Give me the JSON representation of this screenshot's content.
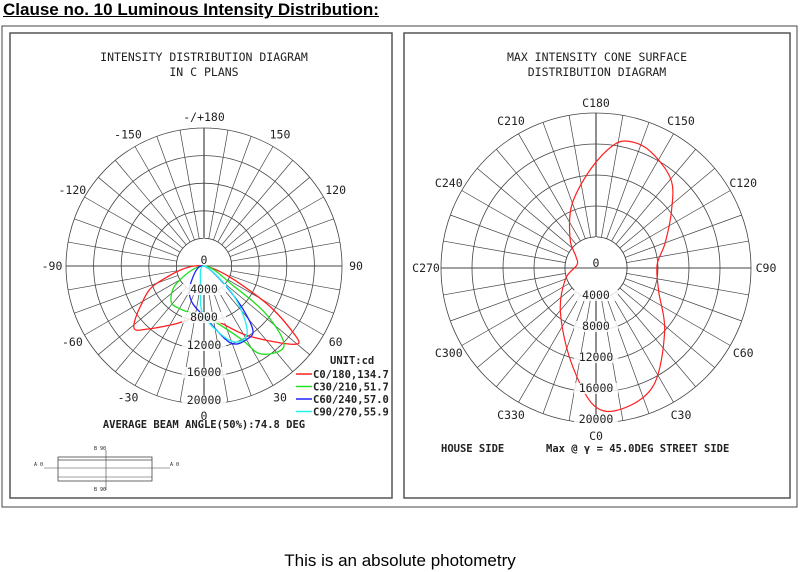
{
  "heading": "Clause no. 10 Luminous Intensity Distribution:",
  "caption": "This is an absolute photometry",
  "chart_data": [
    {
      "type": "polar-line",
      "title": [
        "INTENSITY DISTRIBUTION DIAGRAM",
        "IN C PLANS"
      ],
      "angle_labels": [
        "-/+180",
        "150",
        "120",
        "90",
        "60",
        "30",
        "0",
        "-30",
        "-60",
        "-90",
        "-120",
        "-150"
      ],
      "radial_labels": [
        "0",
        "4000",
        "8000",
        "12000",
        "16000",
        "20000"
      ],
      "radial_range": [
        0,
        20000
      ],
      "unit_label": "UNIT:cd",
      "footer": "AVERAGE BEAM ANGLE(50%):74.8 DEG",
      "series": [
        {
          "name": "C0/180,134.7",
          "color": "#ff2020",
          "points": [
            [
              0,
              0
            ],
            [
              -70,
              7200
            ],
            [
              -58,
              10800
            ],
            [
              -48.5,
              13550
            ],
            [
              -42,
              12300
            ],
            [
              -27,
              9450
            ],
            [
              -8,
              7600
            ],
            [
              13,
              8200
            ],
            [
              32,
              11900
            ],
            [
              49,
              17300
            ],
            [
              53,
              16350
            ],
            [
              60,
              9500
            ],
            [
              0,
              0
            ]
          ]
        },
        {
          "name": "C30/210,51.7",
          "color": "#20e020",
          "points": [
            [
              0,
              0
            ],
            [
              -58,
              4600
            ],
            [
              -43,
              7000
            ],
            [
              -28,
              7100
            ],
            [
              -4,
              7300
            ],
            [
              10,
              8100
            ],
            [
              27,
              11900
            ],
            [
              33,
              15200
            ],
            [
              45,
              16400
            ],
            [
              52,
              11600
            ],
            [
              56,
              5200
            ],
            [
              0,
              0
            ]
          ]
        },
        {
          "name": "C60/240,57.0",
          "color": "#2020ff",
          "points": [
            [
              0,
              0
            ],
            [
              -38,
              3100
            ],
            [
              -20,
              5400
            ],
            [
              3,
              7700
            ],
            [
              19,
              11800
            ],
            [
              30.5,
              12300
            ],
            [
              38,
              11400
            ],
            [
              45,
              6100
            ],
            [
              0,
              0
            ]
          ]
        },
        {
          "name": "C90/270,55.9",
          "color": "#20f0f0",
          "points": [
            [
              0,
              0
            ],
            [
              -8,
              3400
            ],
            [
              0,
              7250
            ],
            [
              20,
              11600
            ],
            [
              33,
              11500
            ],
            [
              45,
              6100
            ],
            [
              0,
              0
            ]
          ]
        }
      ],
      "luminaire_sketch_labels": {
        "top": "B 90",
        "bottom": "B 90",
        "left": "A 0",
        "right": "A 0"
      }
    },
    {
      "type": "polar-line",
      "title": [
        "MAX INTENSITY CONE SURFACE",
        "DISTRIBUTION DIAGRAM"
      ],
      "angle_labels": [
        "C180",
        "C150",
        "C120",
        "C90",
        "C60",
        "C30",
        "C0",
        "C330",
        "C300",
        "C270",
        "C240",
        "C210"
      ],
      "radial_labels": [
        "0",
        "4000",
        "8000",
        "12000",
        "16000",
        "20000"
      ],
      "radial_range": [
        0,
        20000
      ],
      "footer_left": "HOUSE SIDE",
      "footer_right": "Max @ γ = 45.0DEG STREET SIDE",
      "series": [
        {
          "color": "#ff2020",
          "points": [
            [
              10,
              18500
            ],
            [
              26,
              16900
            ],
            [
              47,
              12100
            ],
            [
              70,
              8600
            ],
            [
              93,
              7900
            ],
            [
              110,
              9500
            ],
            [
              128,
              12400
            ],
            [
              140,
              15000
            ],
            [
              155,
              16600
            ],
            [
              165,
              16900
            ],
            [
              172,
              16000
            ],
            [
              183,
              12800
            ],
            [
              201,
              8700
            ],
            [
              222,
              5000
            ],
            [
              240,
              3000
            ],
            [
              261,
              2500
            ],
            [
              290,
              4200
            ],
            [
              321,
              7300
            ],
            [
              345,
              12500
            ],
            [
              359,
              17700
            ]
          ]
        }
      ]
    }
  ]
}
